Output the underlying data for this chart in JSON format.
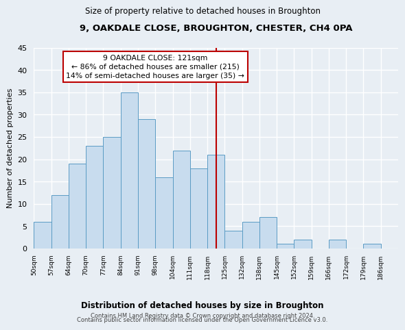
{
  "title": "9, OAKDALE CLOSE, BROUGHTON, CHESTER, CH4 0PA",
  "subtitle": "Size of property relative to detached houses in Broughton",
  "xlabel": "Distribution of detached houses by size in Broughton",
  "ylabel": "Number of detached properties",
  "bin_labels": [
    "50sqm",
    "57sqm",
    "64sqm",
    "70sqm",
    "77sqm",
    "84sqm",
    "91sqm",
    "98sqm",
    "104sqm",
    "111sqm",
    "118sqm",
    "125sqm",
    "132sqm",
    "138sqm",
    "145sqm",
    "152sqm",
    "159sqm",
    "166sqm",
    "172sqm",
    "179sqm",
    "186sqm"
  ],
  "bar_heights": [
    6,
    12,
    19,
    23,
    25,
    35,
    29,
    16,
    22,
    18,
    21,
    4,
    6,
    7,
    1,
    2,
    0,
    2,
    0,
    1,
    0
  ],
  "bar_color": "#c8dcee",
  "bar_edge_color": "#5a9bc4",
  "vline_x_bin": 10,
  "vline_label": "9 OAKDALE CLOSE: 121sqm",
  "annotation_line1": "← 86% of detached houses are smaller (215)",
  "annotation_line2": "14% of semi-detached houses are larger (35) →",
  "vline_color": "#bb0000",
  "ylim": [
    0,
    45
  ],
  "yticks": [
    0,
    5,
    10,
    15,
    20,
    25,
    30,
    35,
    40,
    45
  ],
  "background_color": "#e8eef4",
  "grid_color": "#ffffff",
  "footer_line1": "Contains HM Land Registry data © Crown copyright and database right 2024.",
  "footer_line2": "Contains public sector information licensed under the Open Government Licence v3.0."
}
